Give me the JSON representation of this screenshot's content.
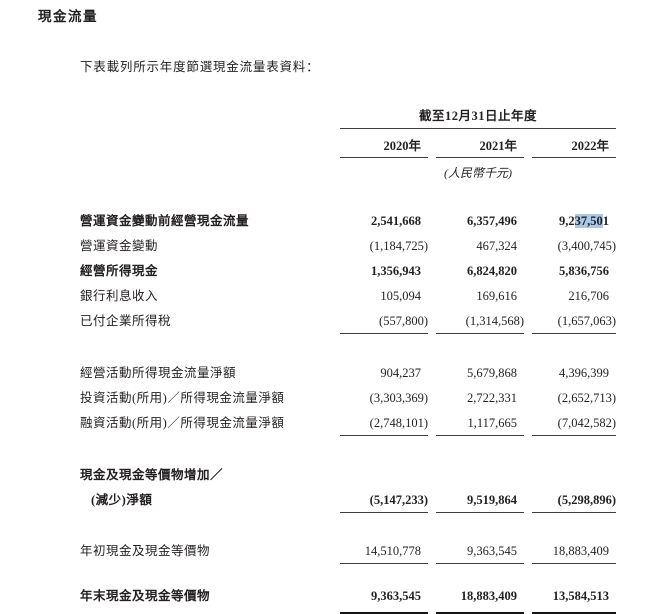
{
  "page": {
    "title": "現金流量",
    "intro": "下表載列所示年度節選現金流量表資料："
  },
  "table": {
    "period_header": "截至12月31日止年度",
    "year_headers": [
      "2020年",
      "2021年",
      "2022年"
    ],
    "unit_note": "(人民幣千元)",
    "highlight_color": "#a9c9e6",
    "sections": [
      {
        "rows": [
          {
            "label": "營運資金變動前經營現金流量",
            "bold": true,
            "values": [
              "2,541,668",
              "6,357,496",
              {
                "pre": "9,2",
                "sel": "37,50",
                "post": "1"
              }
            ]
          },
          {
            "label": "營運資金變動",
            "values": [
              "(1,184,725)",
              "467,324",
              "(3,400,745)"
            ]
          },
          {
            "label": "經營所得現金",
            "bold": true,
            "values": [
              "1,356,943",
              "6,824,820",
              "5,836,756"
            ]
          },
          {
            "label": "銀行利息收入",
            "values": [
              "105,094",
              "169,616",
              "216,706"
            ]
          },
          {
            "label": "已付企業所得稅",
            "values": [
              "(557,800)",
              "(1,314,568)",
              "(1,657,063)"
            ],
            "rule": "single"
          }
        ]
      },
      {
        "rows": [
          {
            "label": "經營活動所得現金流量淨額",
            "values": [
              "904,237",
              "5,679,868",
              "4,396,399"
            ]
          },
          {
            "label": "投資活動(所用)／所得現金流量淨額",
            "values": [
              "(3,303,369)",
              "2,722,331",
              "(2,652,713)"
            ]
          },
          {
            "label": "融資活動(所用)／所得現金流量淨額",
            "values": [
              "(2,748,101)",
              "1,117,665",
              "(7,042,582)"
            ],
            "rule": "single"
          }
        ]
      },
      {
        "rows": [
          {
            "label": "現金及現金等價物增加／",
            "label2": "(減少)淨額",
            "bold": true,
            "values": [
              "(5,147,233)",
              "9,519,864",
              "(5,298,896)"
            ],
            "rule": "single"
          }
        ]
      },
      {
        "rows": [
          {
            "label": "年初現金及現金等價物",
            "values": [
              "14,510,778",
              "9,363,545",
              "18,883,409"
            ],
            "rule": "single"
          }
        ]
      },
      {
        "rows": [
          {
            "label": "年末現金及現金等價物",
            "bold": true,
            "values": [
              "9,363,545",
              "18,883,409",
              "13,584,513"
            ],
            "rule": "double"
          }
        ]
      }
    ]
  }
}
